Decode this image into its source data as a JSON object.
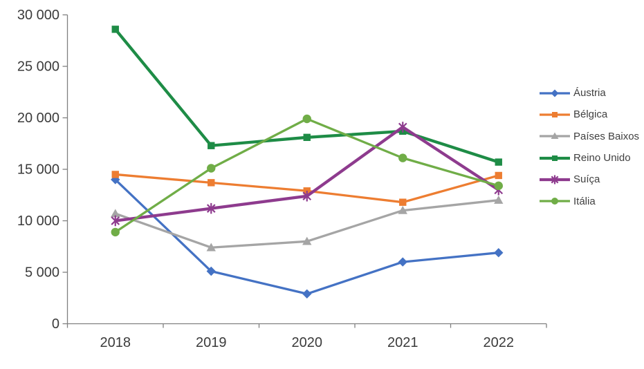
{
  "chart_data": {
    "type": "line",
    "title": "",
    "xlabel": "",
    "ylabel": "",
    "categories": [
      "2018",
      "2019",
      "2020",
      "2021",
      "2022"
    ],
    "series": [
      {
        "name": "Áustria",
        "color": "#4472C4",
        "marker": "diamond",
        "values": [
          14000,
          5100,
          2900,
          6000,
          6900
        ]
      },
      {
        "name": "Bélgica",
        "color": "#ED7D31",
        "marker": "square",
        "values": [
          14500,
          13700,
          12900,
          11800,
          14400
        ]
      },
      {
        "name": "Países Baixos",
        "color": "#A5A5A5",
        "marker": "triangle",
        "values": [
          10700,
          7400,
          8000,
          11000,
          12000
        ]
      },
      {
        "name": "Reino Unido",
        "color": "#1E8C46",
        "marker": "square",
        "values": [
          28600,
          17300,
          18100,
          18700,
          15700
        ]
      },
      {
        "name": "Suíça",
        "color": "#8E3B8E",
        "marker": "asterisk",
        "values": [
          10000,
          11200,
          12400,
          19100,
          13000
        ]
      },
      {
        "name": "Itália",
        "color": "#70AD47",
        "marker": "circle",
        "values": [
          8900,
          15100,
          19900,
          16100,
          13400
        ]
      }
    ],
    "ylim": [
      0,
      30000
    ],
    "ytick_step": 5000,
    "ytick_labels": [
      "0",
      "5 000",
      "10 000",
      "15 000",
      "20 000",
      "25 000",
      "30 000"
    ],
    "grid": false,
    "legend_position": "right",
    "axis_color": "#808080",
    "label_color": "#3b3b3b"
  }
}
